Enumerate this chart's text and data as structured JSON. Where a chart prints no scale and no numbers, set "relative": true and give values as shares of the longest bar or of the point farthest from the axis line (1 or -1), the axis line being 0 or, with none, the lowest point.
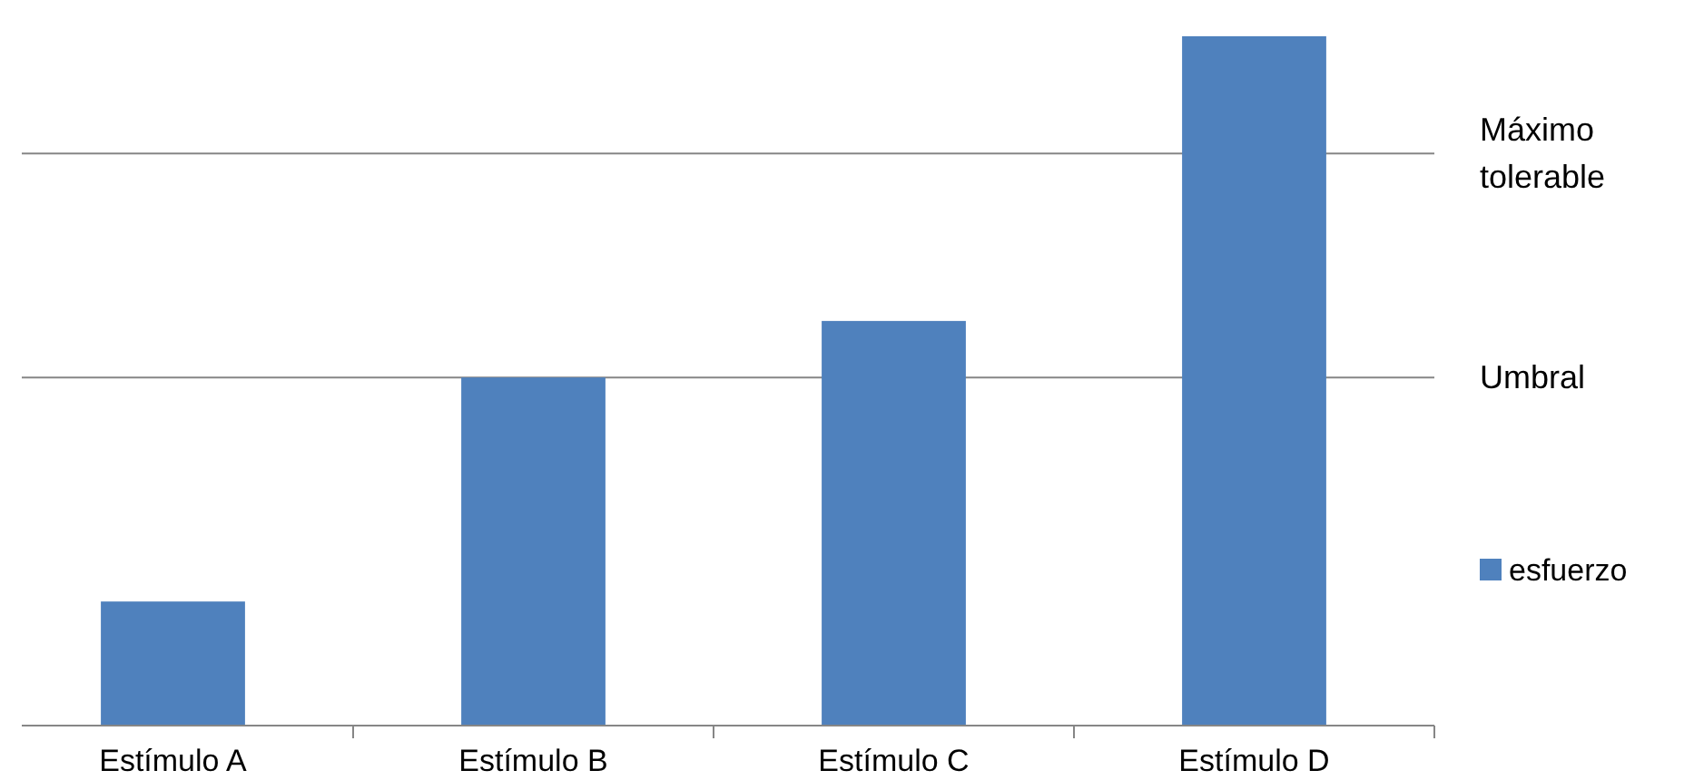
{
  "chart_data": {
    "type": "bar",
    "relative": true,
    "categories": [
      "Estímulo A",
      "Estímulo B",
      "Estímulo C",
      "Estímulo D"
    ],
    "series": [
      {
        "name": "esfuerzo",
        "color": "#4f81bd",
        "values": [
          0.18,
          0.505,
          0.587,
          1
        ]
      }
    ],
    "ref_lines": [
      {
        "axis": "y",
        "value": 0.505,
        "label": "Umbral",
        "color": "#868686"
      },
      {
        "axis": "y",
        "value": 0.83,
        "label": "Máximo tolerable",
        "color": "#868686"
      }
    ],
    "legend": "right"
  }
}
